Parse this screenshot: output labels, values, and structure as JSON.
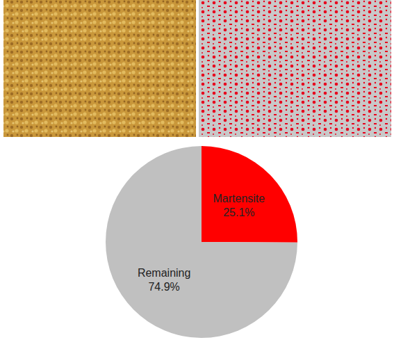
{
  "chart_data": {
    "type": "pie",
    "categories": [
      "Martensite",
      "Remaining"
    ],
    "values": [
      25.1,
      74.9
    ],
    "value_labels": [
      "25.1%",
      "74.9%"
    ],
    "colors": [
      "#ff0000",
      "#c0c0c0"
    ],
    "data_labels": true
  }
}
